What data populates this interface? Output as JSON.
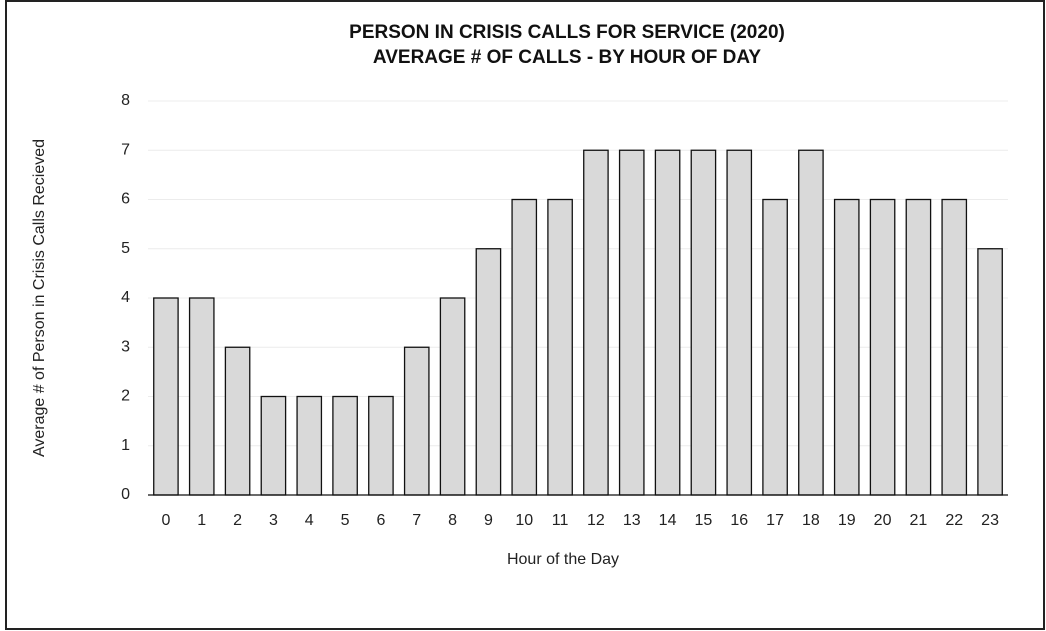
{
  "chart_data": {
    "type": "bar",
    "title": "PERSON IN CRISIS CALLS FOR SERVICE (2020)",
    "subtitle": "AVERAGE # OF CALLS - BY HOUR OF DAY",
    "x_label": "Hour of the Day",
    "y_label": "Average # of Person in Crisis Calls Recieved",
    "categories": [
      "0",
      "1",
      "2",
      "3",
      "4",
      "5",
      "6",
      "7",
      "8",
      "9",
      "10",
      "11",
      "12",
      "13",
      "14",
      "15",
      "16",
      "17",
      "18",
      "19",
      "20",
      "21",
      "22",
      "23"
    ],
    "values": [
      4,
      4,
      3,
      2,
      2,
      2,
      2,
      3,
      4,
      5,
      6,
      6,
      7,
      7,
      7,
      7,
      7,
      6,
      7,
      6,
      6,
      6,
      6,
      5
    ],
    "color": "#d9d9d9",
    "ylim": [
      0,
      8
    ],
    "yticks": [
      0,
      1,
      2,
      3,
      4,
      5,
      6,
      7,
      8
    ],
    "grid": true
  }
}
